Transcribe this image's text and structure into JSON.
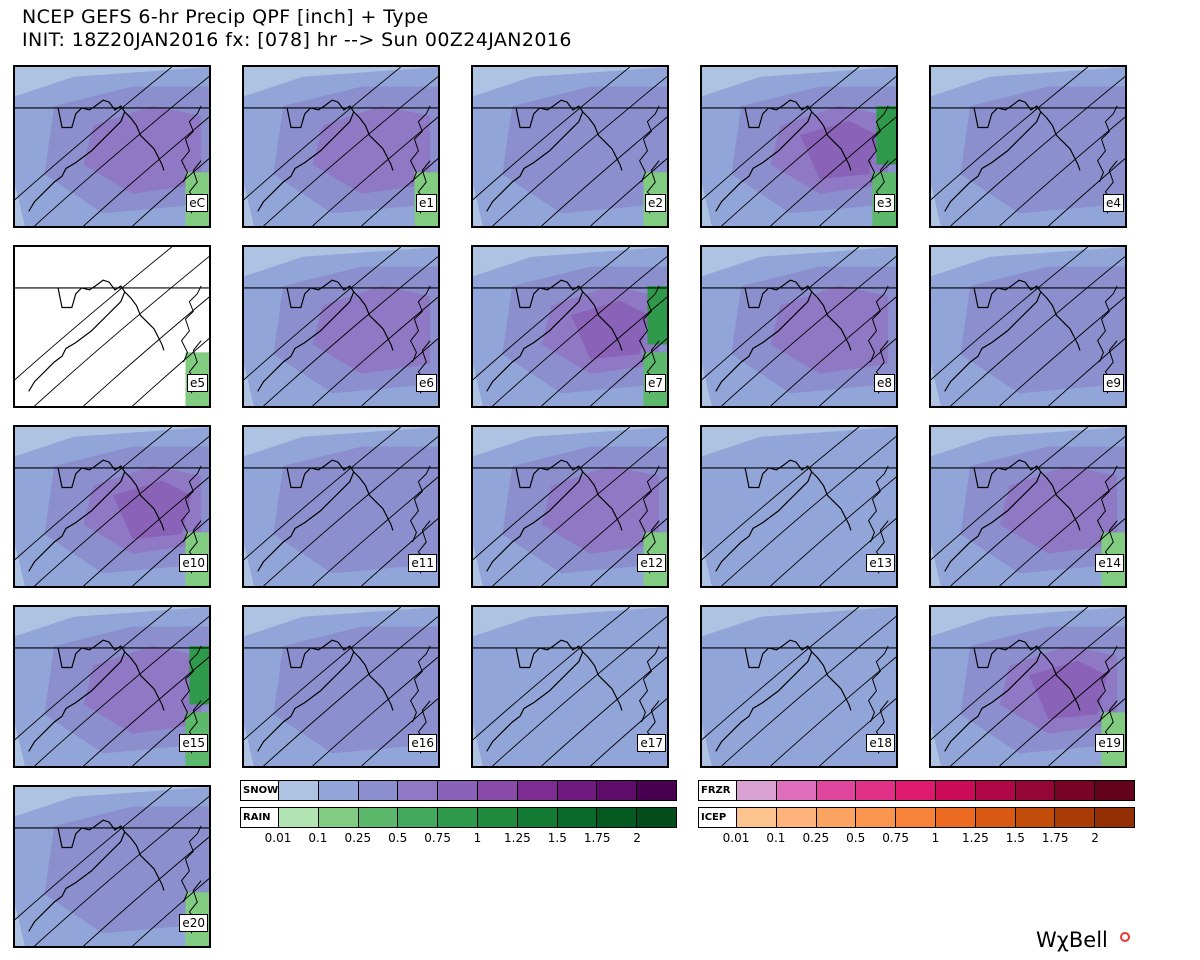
{
  "header": {
    "title_line1": "NCEP GEFS 6-hr Precip QPF [inch] + Type",
    "title_line2": "INIT: 18Z20JAN2016 fx: [078] hr --> Sun 00Z24JAN2016"
  },
  "colors": {
    "snow": [
      "#aec3e2",
      "#92a5d8",
      "#8b8fce",
      "#8f79c4",
      "#8a63b8",
      "#8a4aa8",
      "#7d2c92",
      "#6e1a7e",
      "#5e0c6a",
      "#4a0050"
    ],
    "rain": [
      "#b2e3b2",
      "#82cc82",
      "#5cb86a",
      "#43a95c",
      "#2f9a4c",
      "#1f8a3e",
      "#137a34",
      "#0a6a2a",
      "#055a22",
      "#034d1b"
    ],
    "frzr": [
      "#d9a2d2",
      "#df6fbd",
      "#e0469e",
      "#e03087",
      "#de1a6e",
      "#cc0c58",
      "#b00846",
      "#940636",
      "#7a0428",
      "#62021c"
    ],
    "icep": [
      "#fdc38e",
      "#fdb37a",
      "#fca462",
      "#fa954f",
      "#f7823a",
      "#ec6a22",
      "#d85a14",
      "#c24c0a",
      "#a93c06",
      "#932f03"
    ]
  },
  "legend": {
    "snow_label": "SNOW",
    "rain_label": "RAIN",
    "frzr_label": "FRZR",
    "icep_label": "ICEP",
    "ticks": [
      "0.01",
      "0.1",
      "0.25",
      "0.5",
      "0.75",
      "1",
      "1.25",
      "1.5",
      "1.75",
      "2"
    ]
  },
  "brand": "WχBell",
  "panels": [
    {
      "label": "eC",
      "precip": "moderate snow over most of region, rain near coast",
      "snow": 3,
      "rain": 1
    },
    {
      "label": "e1",
      "precip": "snow with heavier core near bay, rain at coast",
      "snow": 3,
      "rain": 1
    },
    {
      "label": "e2",
      "precip": "snow, rain near coast",
      "snow": 2,
      "rain": 1
    },
    {
      "label": "e3",
      "precip": "heavy snow, rain at coast",
      "snow": 5,
      "rain": 2
    },
    {
      "label": "e4",
      "precip": "light to moderate snow",
      "snow": 2,
      "rain": 0
    },
    {
      "label": "e5",
      "precip": "nearly dry, light rain at coast",
      "snow": 0,
      "rain": 1
    },
    {
      "label": "e6",
      "precip": "moderate snow",
      "snow": 3,
      "rain": 0
    },
    {
      "label": "e7",
      "precip": "heavy snow, rain and sleet at coast",
      "snow": 5,
      "rain": 2
    },
    {
      "label": "e8",
      "precip": "moderate snow",
      "snow": 3,
      "rain": 0
    },
    {
      "label": "e9",
      "precip": "light snow",
      "snow": 2,
      "rain": 0
    },
    {
      "label": "e10",
      "precip": "heavy snow, rain at coast",
      "snow": 4,
      "rain": 1
    },
    {
      "label": "e11",
      "precip": "moderate snow",
      "snow": 2,
      "rain": 0
    },
    {
      "label": "e12",
      "precip": "moderate snow, rain at coast",
      "snow": 3,
      "rain": 1
    },
    {
      "label": "e13",
      "precip": "mostly dry, light snow east",
      "snow": 1,
      "rain": 0
    },
    {
      "label": "e14",
      "precip": "moderate snow, rain at coast",
      "snow": 3,
      "rain": 1
    },
    {
      "label": "e15",
      "precip": "snow, rain and sleet at coast",
      "snow": 3,
      "rain": 2
    },
    {
      "label": "e16",
      "precip": "moderate snow south and east",
      "snow": 2,
      "rain": 0
    },
    {
      "label": "e17",
      "precip": "mostly dry",
      "snow": 1,
      "rain": 0
    },
    {
      "label": "e18",
      "precip": "light snow",
      "snow": 1,
      "rain": 0
    },
    {
      "label": "e19",
      "precip": "heavy snow",
      "snow": 4,
      "rain": 1
    },
    {
      "label": "e20",
      "precip": "moderate snow, rain at coast",
      "snow": 2,
      "rain": 1
    }
  ]
}
